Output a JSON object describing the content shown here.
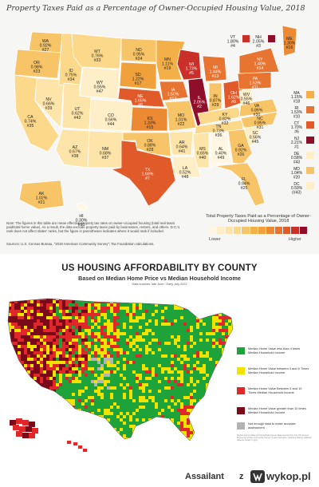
{
  "top_map": {
    "title": "Property Taxes Paid as a Percentage of Owner-Occupied Housing Value, 2018",
    "states": [
      {
        "abbr": "WA",
        "pct": "0.92%",
        "rank": "#27",
        "color": "#f7c468"
      },
      {
        "abbr": "OR",
        "pct": "0.98%",
        "rank": "#23",
        "color": "#f7c468"
      },
      {
        "abbr": "CA",
        "pct": "0.74%",
        "rank": "#35",
        "color": "#fbd88a"
      },
      {
        "abbr": "NV",
        "pct": "0.66%",
        "rank": "#39",
        "color": "#fde4a8"
      },
      {
        "abbr": "ID",
        "pct": "0.75%",
        "rank": "#34",
        "color": "#fbd88a"
      },
      {
        "abbr": "MT",
        "pct": "0.76%",
        "rank": "#33",
        "color": "#fbd88a"
      },
      {
        "abbr": "WY",
        "pct": "0.55%",
        "rank": "#47",
        "color": "#feefc9"
      },
      {
        "abbr": "UT",
        "pct": "0.62%",
        "rank": "#42",
        "color": "#fde4a8"
      },
      {
        "abbr": "CO",
        "pct": "0.56%",
        "rank": "#44",
        "color": "#feefc9"
      },
      {
        "abbr": "AZ",
        "pct": "0.67%",
        "rank": "#38",
        "color": "#fde4a8"
      },
      {
        "abbr": "NM",
        "pct": "0.68%",
        "rank": "#37",
        "color": "#fde4a8"
      },
      {
        "abbr": "ND",
        "pct": "0.95%",
        "rank": "#24",
        "color": "#f7c468"
      },
      {
        "abbr": "SD",
        "pct": "1.22%",
        "rank": "#17",
        "color": "#f0a13c"
      },
      {
        "abbr": "NE",
        "pct": "1.65%",
        "rank": "#8",
        "color": "#e05a2a"
      },
      {
        "abbr": "KS",
        "pct": "1.33%",
        "rank": "#15",
        "color": "#eb8a33"
      },
      {
        "abbr": "OK",
        "pct": "0.88%",
        "rank": "#28",
        "color": "#f7c468"
      },
      {
        "abbr": "TX",
        "pct": "1.69%",
        "rank": "#7",
        "color": "#e05a2a"
      },
      {
        "abbr": "MN",
        "pct": "1.11%",
        "rank": "#19",
        "color": "#f3b049"
      },
      {
        "abbr": "IA",
        "pct": "1.50%",
        "rank": "#12",
        "color": "#e77430"
      },
      {
        "abbr": "MO",
        "pct": "1.01%",
        "rank": "#22",
        "color": "#f7c468"
      },
      {
        "abbr": "AR",
        "pct": "0.64%",
        "rank": "#41",
        "color": "#fde4a8"
      },
      {
        "abbr": "LA",
        "pct": "0.52%",
        "rank": "#48",
        "color": "#feefc9"
      },
      {
        "abbr": "WI",
        "pct": "1.73%",
        "rank": "#5",
        "color": "#c9302a"
      },
      {
        "abbr": "IL",
        "pct": "2.05%",
        "rank": "#2",
        "color": "#8f0e2a"
      },
      {
        "abbr": "MI",
        "pct": "1.44%",
        "rank": "#13",
        "color": "#e77430"
      },
      {
        "abbr": "IN",
        "pct": "0.87%",
        "rank": "#29",
        "color": "#f7c468"
      },
      {
        "abbr": "OH",
        "pct": "1.62%",
        "rank": "#9",
        "color": "#e05a2a"
      },
      {
        "abbr": "KY",
        "pct": "0.82%",
        "rank": "#32",
        "color": "#fbd88a"
      },
      {
        "abbr": "TN",
        "pct": "0.73%",
        "rank": "#36",
        "color": "#fbd88a"
      },
      {
        "abbr": "MS",
        "pct": "0.65%",
        "rank": "#40",
        "color": "#fde4a8"
      },
      {
        "abbr": "AL",
        "pct": "0.40%",
        "rank": "#49",
        "color": "#fff7e3"
      },
      {
        "abbr": "GA",
        "pct": "0.92%",
        "rank": "#26",
        "color": "#f7c468"
      },
      {
        "abbr": "FL",
        "pct": "0.94%",
        "rank": "#25",
        "color": "#f7c468"
      },
      {
        "abbr": "SC",
        "pct": "0.56%",
        "rank": "#45",
        "color": "#feefc9"
      },
      {
        "abbr": "NC",
        "pct": "0.85%",
        "rank": "#31",
        "color": "#f7c468"
      },
      {
        "abbr": "VA",
        "pct": "0.86%",
        "rank": "#30",
        "color": "#f7c468"
      },
      {
        "abbr": "WV",
        "pct": "0.55%",
        "rank": "#46",
        "color": "#feefc9"
      },
      {
        "abbr": "PA",
        "pct": "1.53%",
        "rank": "#11",
        "color": "#e77430"
      },
      {
        "abbr": "NY",
        "pct": "1.40%",
        "rank": "#14",
        "color": "#e77430"
      },
      {
        "abbr": "ME",
        "pct": "1.30%",
        "rank": "#16",
        "color": "#eb8a33"
      },
      {
        "abbr": "AK",
        "pct": "1.02%",
        "rank": "#21",
        "color": "#f7c468"
      },
      {
        "abbr": "HI",
        "pct": "0.30%",
        "rank": "#50",
        "color": "#fff7e3"
      }
    ],
    "northeast": [
      {
        "abbr": "VT",
        "pct": "1.80%",
        "rank": "#4",
        "color": "#c9302a"
      },
      {
        "abbr": "NH",
        "pct": "2.05%",
        "rank": "#3",
        "color": "#8f0e2a"
      }
    ],
    "sidebar": [
      {
        "abbr": "MA",
        "pct": "1.15%",
        "rank": "#18",
        "color": "#f3b049"
      },
      {
        "abbr": "RI",
        "pct": "1.53%",
        "rank": "#10",
        "color": "#e77430"
      },
      {
        "abbr": "CT",
        "pct": "1.70%",
        "rank": "#6",
        "color": "#e05a2a"
      },
      {
        "abbr": "NJ",
        "pct": "2.21%",
        "rank": "#1",
        "color": "#8f0e2a"
      },
      {
        "abbr": "DE",
        "pct": "0.58%",
        "rank": "#43",
        "color": "#feefc9"
      },
      {
        "abbr": "MD",
        "pct": "1.04%",
        "rank": "#20",
        "color": "#f7c468"
      },
      {
        "abbr": "DC",
        "pct": "0.59%",
        "rank": "(#43)",
        "color": "#feefc9"
      }
    ],
    "note": "Note: The figures in this table are mean effective property tax rates on owner-occupied housing (total real taxes paid/total home value). As a result, the data exclude property taxes paid by businesses, renters, and others. D.C.'s rank does not affect states' ranks, but the figure in parentheses indicates where it would rank if included.",
    "source": "Sources: U.S. Census Bureau, \"2018 American Community Survey\"; Tax Foundation calculations.",
    "legend": {
      "title": "Total Property Taxes Paid as a Percentage of Owner-Occupied Housing Value, 2018",
      "low": "Lower",
      "high": "Higher",
      "colors": [
        "#fff7e3",
        "#feefc9",
        "#fde4a8",
        "#fbd88a",
        "#f7c468",
        "#f3b049",
        "#f0a13c",
        "#eb8a33",
        "#e77430",
        "#e05a2a",
        "#c9302a",
        "#8f0e2a"
      ]
    }
  },
  "bottom_map": {
    "title": "US HOUSING AFFORDABILITY BY COUNTY",
    "subtitle": "Based on Median Home Price vs Median Household Income",
    "note": "Data sources: late June / Early July 2022",
    "legend": [
      {
        "label": "Median Home Value less than 4 times Median Household Income",
        "color": "#1ea33b"
      },
      {
        "label": "Median Home Value between 4 and 6 Times Median Household Income",
        "color": "#f2e200"
      },
      {
        "label": "Median Home Value Between 6 and 10 Times Median Household Income",
        "color": "#e0272a"
      },
      {
        "label": "Median Home Value greater than 10 times Median Household Income",
        "color": "#7a0a1a"
      },
      {
        "label": "Not enough data to make accurate assessment",
        "color": "#b3b3b3"
      }
    ],
    "fine_print": "Median Home Value and household income data sourced from the US Census Bureau American Community Survey 5-year estimates. Counties lacking sufficient data are shown in grey."
  },
  "footer": {
    "user": "Assailant",
    "separator": "z",
    "site": "wykop.pl"
  }
}
